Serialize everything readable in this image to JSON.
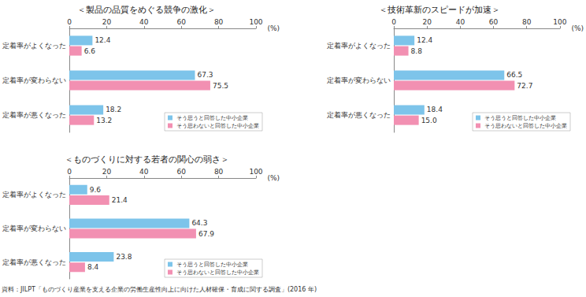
{
  "chart_data": [
    {
      "type": "bar",
      "title": "＜製品の品質をめぐる競争の激化＞",
      "orientation": "horizontal",
      "categories": [
        "定着率がよくなった",
        "定着率が変わらない",
        "定着率が悪くなった"
      ],
      "series": [
        {
          "name": "そう思うと回答した中小企業",
          "color": "#7dc4ea",
          "values": [
            12.4,
            67.3,
            18.2
          ]
        },
        {
          "name": "そう思わないと回答した中小企業",
          "color": "#f290b2",
          "values": [
            6.6,
            75.5,
            13.2
          ]
        }
      ],
      "xlim": [
        0,
        100
      ],
      "xticks": [
        0,
        20,
        40,
        60,
        80,
        100
      ],
      "xlabel": "(%)",
      "data_labels": true,
      "legend": "lower right",
      "grid": false
    },
    {
      "type": "bar",
      "title": "＜技術革新のスピードが加速＞",
      "orientation": "horizontal",
      "categories": [
        "定着率がよくなった",
        "定着率が変わらない",
        "定着率が悪くなった"
      ],
      "series": [
        {
          "name": "そう思うと回答した中小企業",
          "color": "#7dc4ea",
          "values": [
            12.4,
            66.5,
            18.4
          ]
        },
        {
          "name": "そう思わないと回答した中小企業",
          "color": "#f290b2",
          "values": [
            8.8,
            72.7,
            15.0
          ],
          "value_labels": [
            "8.8",
            "72.7",
            "15.0"
          ]
        }
      ],
      "xlim": [
        0,
        100
      ],
      "xticks": [
        0,
        20,
        40,
        60,
        80,
        100
      ],
      "xlabel": "(%)",
      "data_labels": true,
      "legend": "lower right",
      "grid": false
    },
    {
      "type": "bar",
      "title": "＜ものづくりに対する若者の関心の弱さ＞",
      "orientation": "horizontal",
      "categories": [
        "定着率がよくなった",
        "定着率が変わらない",
        "定着率が悪くなった"
      ],
      "series": [
        {
          "name": "そう思うと回答した中小企業",
          "color": "#7dc4ea",
          "values": [
            9.6,
            64.3,
            23.8
          ]
        },
        {
          "name": "そう思わないと回答した中小企業",
          "color": "#f290b2",
          "values": [
            21.4,
            67.9,
            8.4
          ]
        }
      ],
      "xlim": [
        0,
        100
      ],
      "xticks": [
        0,
        20,
        40,
        60,
        80,
        100
      ],
      "xlabel": "(%)",
      "data_labels": true,
      "legend": "lower right",
      "grid": false
    }
  ],
  "source": "資料：JILPT「ものづくり産業を支える企業の労働生産性向上に向けた人材確保・育成に関する調査」(2016 年)"
}
